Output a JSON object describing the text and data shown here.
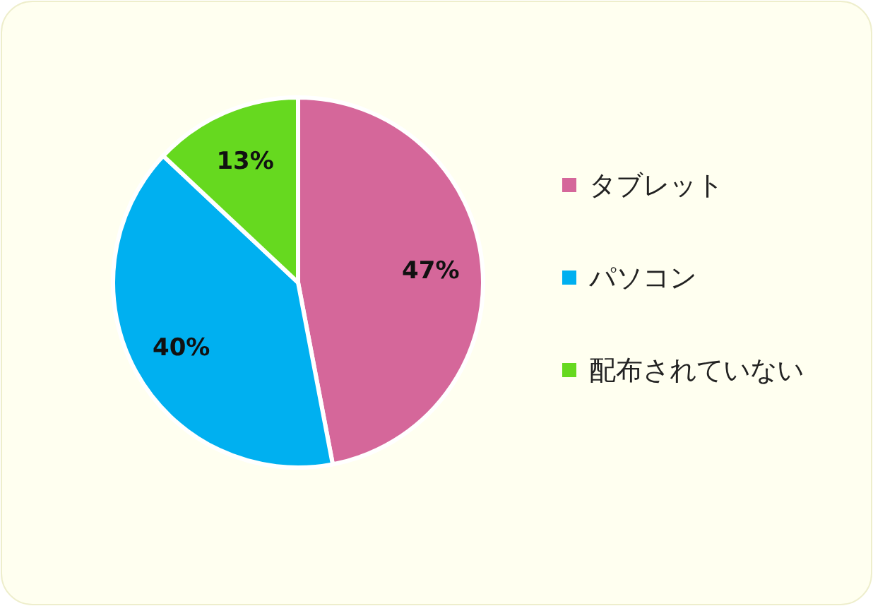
{
  "chart_data": {
    "type": "pie",
    "categories": [
      "タブレット",
      "パソコン",
      "配布されていない"
    ],
    "values": [
      47,
      40,
      13
    ],
    "colors": [
      "#d5679a",
      "#00b0f0",
      "#66d91f"
    ],
    "value_labels": [
      "47%",
      "40%",
      "13%"
    ],
    "legend": "right"
  }
}
